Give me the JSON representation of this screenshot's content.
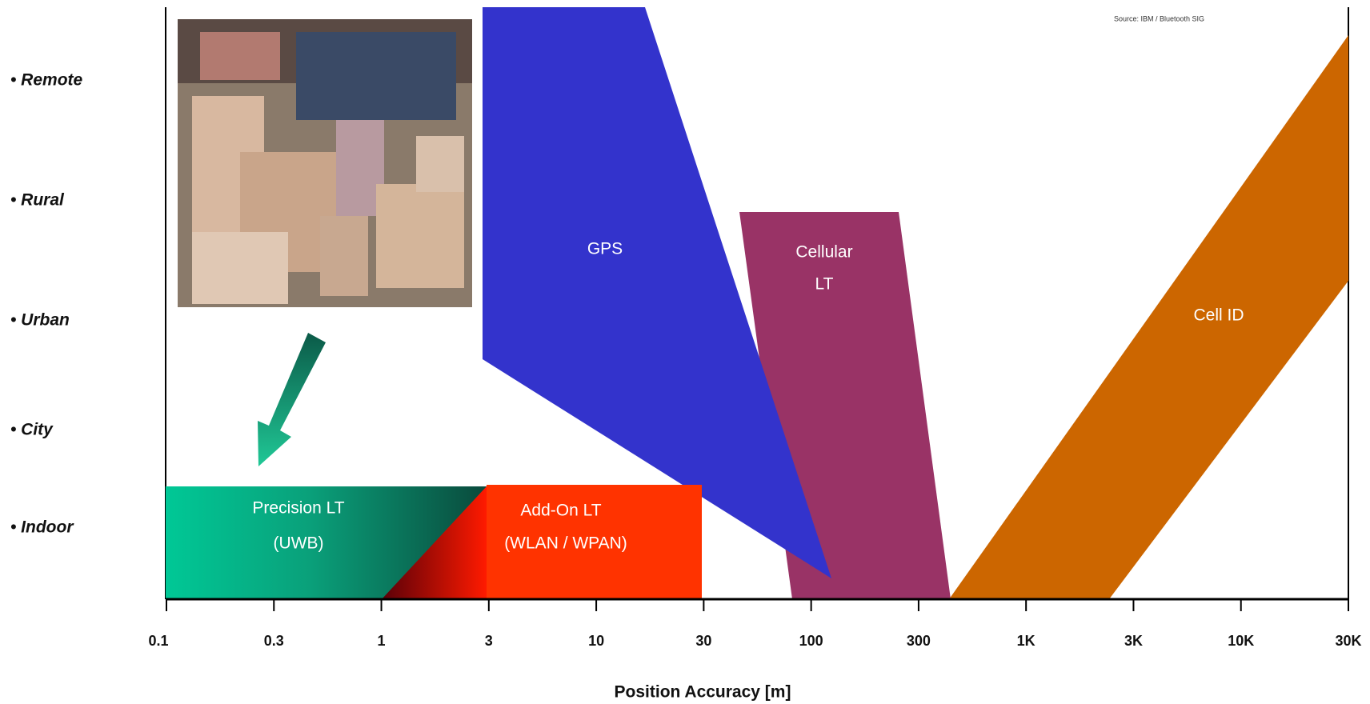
{
  "source": "Source: IBM / Bluetooth SIG",
  "environments": [
    "• Remote",
    "• Rural",
    "• Urban",
    "• City",
    "• Indoor"
  ],
  "x_axis": {
    "title": "Position Accuracy [m]",
    "ticks": [
      "0.1",
      "0.3",
      "1",
      "3",
      "10",
      "30",
      "100",
      "300",
      "1K",
      "3K",
      "10K",
      "30K"
    ]
  },
  "regions": {
    "gps": [
      "GPS"
    ],
    "cellular": [
      "Cellular",
      "LT"
    ],
    "cell_id": [
      "Cell ID"
    ],
    "precision": [
      "Precision LT",
      "(UWB)"
    ],
    "add_on": [
      "Add-On LT",
      "(WLAN / WPAN)"
    ]
  }
}
